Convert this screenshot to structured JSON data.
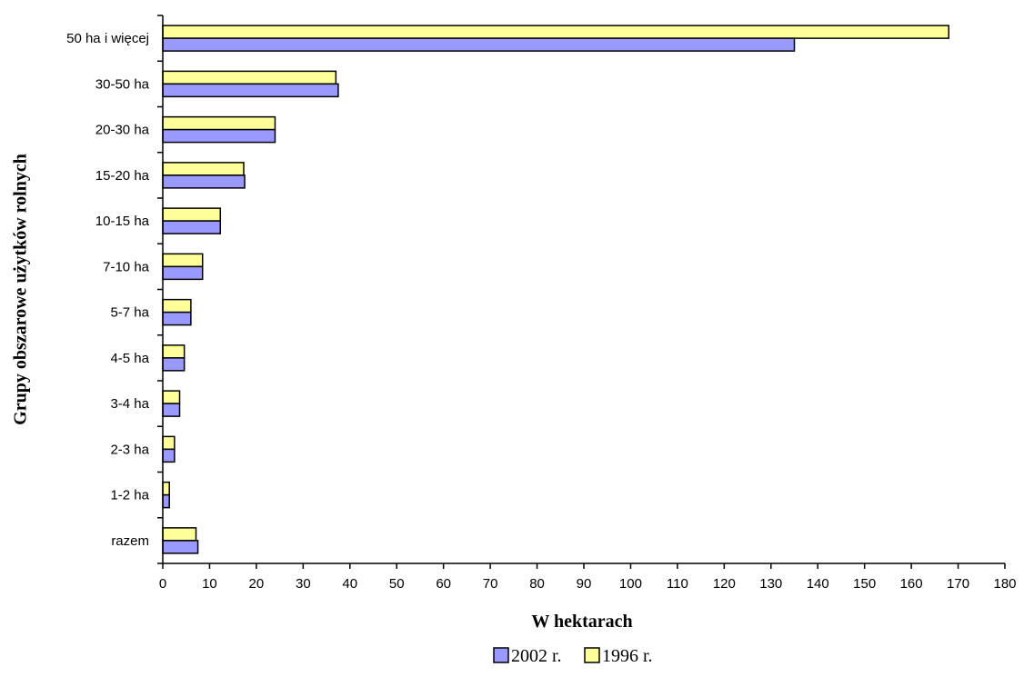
{
  "chart_data": {
    "type": "bar",
    "orientation": "horizontal",
    "categories": [
      "50 ha i więcej",
      "30-50 ha",
      "20-30 ha",
      "15-20 ha",
      "10-15 ha",
      "7-10 ha",
      "5-7 ha",
      "4-5 ha",
      "3-4 ha",
      "2-3 ha",
      "1-2 ha",
      "razem"
    ],
    "series": [
      {
        "name": "1996 r.",
        "color": "#ffff99",
        "values": [
          168.0,
          37.0,
          24.0,
          17.3,
          12.3,
          8.5,
          6.0,
          4.6,
          3.6,
          2.5,
          1.4,
          7.1
        ]
      },
      {
        "name": "2002 r.",
        "color": "#9999ff",
        "values": [
          135.0,
          37.5,
          24.0,
          17.5,
          12.3,
          8.5,
          6.0,
          4.6,
          3.6,
          2.5,
          1.4,
          7.5
        ]
      }
    ],
    "xlabel": "W hektarach",
    "ylabel": "Grupy obszarowe użytków rolnych",
    "xlim": [
      0,
      180
    ],
    "xticks": [
      0,
      10,
      20,
      30,
      40,
      50,
      60,
      70,
      80,
      90,
      100,
      110,
      120,
      130,
      140,
      150,
      160,
      170,
      180
    ],
    "grid": false,
    "legend": {
      "position": "bottom-center",
      "order": [
        "2002 r.",
        "1996 r."
      ]
    }
  }
}
